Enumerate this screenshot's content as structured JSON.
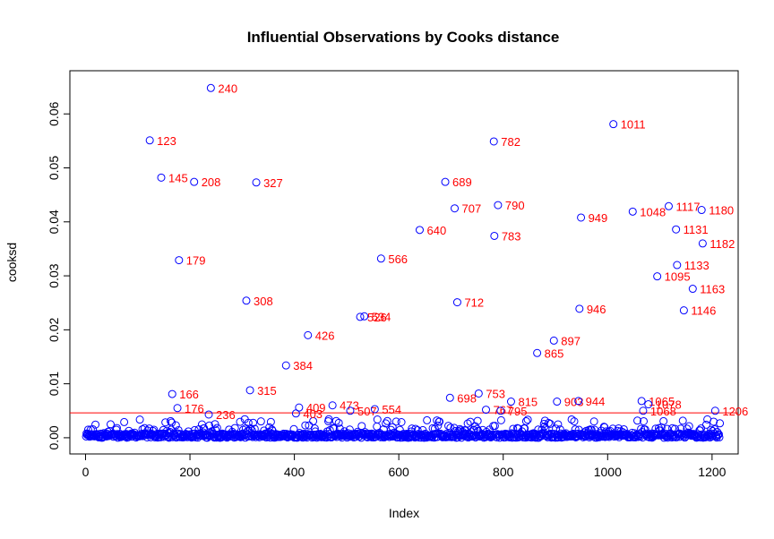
{
  "chart_data": {
    "type": "scatter",
    "title": "Influential Observations by Cooks distance",
    "xlabel": "Index",
    "ylabel": "cooksd",
    "xlim": [
      -30,
      1250
    ],
    "ylim": [
      -0.003,
      0.068
    ],
    "x_ticks": [
      0,
      200,
      400,
      600,
      800,
      1000,
      1200
    ],
    "y_ticks": [
      0.0,
      0.01,
      0.02,
      0.03,
      0.04,
      0.05,
      0.06
    ],
    "y_tick_labels": [
      "0.00",
      "0.01",
      "0.02",
      "0.03",
      "0.04",
      "0.05",
      "0.06"
    ],
    "cutoff_line": 0.0046,
    "point_color": "#0000ff",
    "label_color": "#ff0000",
    "line_color": "#ff0000",
    "labeled_points": [
      {
        "x": 240,
        "y": 0.0648,
        "label": "240"
      },
      {
        "x": 123,
        "y": 0.0551,
        "label": "123"
      },
      {
        "x": 145,
        "y": 0.0482,
        "label": "145"
      },
      {
        "x": 208,
        "y": 0.0474,
        "label": "208"
      },
      {
        "x": 327,
        "y": 0.0473,
        "label": "327"
      },
      {
        "x": 179,
        "y": 0.0329,
        "label": "179"
      },
      {
        "x": 308,
        "y": 0.0254,
        "label": "308"
      },
      {
        "x": 426,
        "y": 0.019,
        "label": "426"
      },
      {
        "x": 384,
        "y": 0.0134,
        "label": "384"
      },
      {
        "x": 166,
        "y": 0.0081,
        "label": "166"
      },
      {
        "x": 315,
        "y": 0.0088,
        "label": "315"
      },
      {
        "x": 176,
        "y": 0.0055,
        "label": "176"
      },
      {
        "x": 236,
        "y": 0.0043,
        "label": "236"
      },
      {
        "x": 409,
        "y": 0.0056,
        "label": "409"
      },
      {
        "x": 403,
        "y": 0.0045,
        "label": "403"
      },
      {
        "x": 473,
        "y": 0.006,
        "label": "473"
      },
      {
        "x": 507,
        "y": 0.005,
        "label": "507"
      },
      {
        "x": 554,
        "y": 0.0053,
        "label": "554"
      },
      {
        "x": 526,
        "y": 0.0224,
        "label": "526"
      },
      {
        "x": 534,
        "y": 0.0225,
        "label": "534"
      },
      {
        "x": 566,
        "y": 0.0332,
        "label": "566"
      },
      {
        "x": 640,
        "y": 0.0385,
        "label": "640"
      },
      {
        "x": 689,
        "y": 0.0474,
        "label": "689"
      },
      {
        "x": 707,
        "y": 0.0425,
        "label": "707"
      },
      {
        "x": 712,
        "y": 0.0251,
        "label": "712"
      },
      {
        "x": 698,
        "y": 0.0074,
        "label": "698"
      },
      {
        "x": 753,
        "y": 0.0082,
        "label": "753"
      },
      {
        "x": 767,
        "y": 0.0052,
        "label": "767"
      },
      {
        "x": 795,
        "y": 0.005,
        "label": "795"
      },
      {
        "x": 815,
        "y": 0.0067,
        "label": "815"
      },
      {
        "x": 782,
        "y": 0.0549,
        "label": "782"
      },
      {
        "x": 790,
        "y": 0.0431,
        "label": "790"
      },
      {
        "x": 783,
        "y": 0.0374,
        "label": "783"
      },
      {
        "x": 865,
        "y": 0.0157,
        "label": "865"
      },
      {
        "x": 897,
        "y": 0.018,
        "label": "897"
      },
      {
        "x": 903,
        "y": 0.0067,
        "label": "903"
      },
      {
        "x": 944,
        "y": 0.0068,
        "label": "944"
      },
      {
        "x": 946,
        "y": 0.0239,
        "label": "946"
      },
      {
        "x": 949,
        "y": 0.0408,
        "label": "949"
      },
      {
        "x": 1011,
        "y": 0.0581,
        "label": "1011"
      },
      {
        "x": 1048,
        "y": 0.0419,
        "label": "1048"
      },
      {
        "x": 1065,
        "y": 0.0068,
        "label": "1065"
      },
      {
        "x": 1078,
        "y": 0.0062,
        "label": "1078"
      },
      {
        "x": 1068,
        "y": 0.005,
        "label": "1068"
      },
      {
        "x": 1095,
        "y": 0.0299,
        "label": "1095"
      },
      {
        "x": 1117,
        "y": 0.0429,
        "label": "1117"
      },
      {
        "x": 1131,
        "y": 0.0386,
        "label": "1131"
      },
      {
        "x": 1133,
        "y": 0.032,
        "label": "1133"
      },
      {
        "x": 1146,
        "y": 0.0236,
        "label": "1146"
      },
      {
        "x": 1163,
        "y": 0.0276,
        "label": "1163"
      },
      {
        "x": 1180,
        "y": 0.0422,
        "label": "1180"
      },
      {
        "x": 1182,
        "y": 0.036,
        "label": "1182"
      },
      {
        "x": 1206,
        "y": 0.005,
        "label": "1206"
      }
    ]
  }
}
